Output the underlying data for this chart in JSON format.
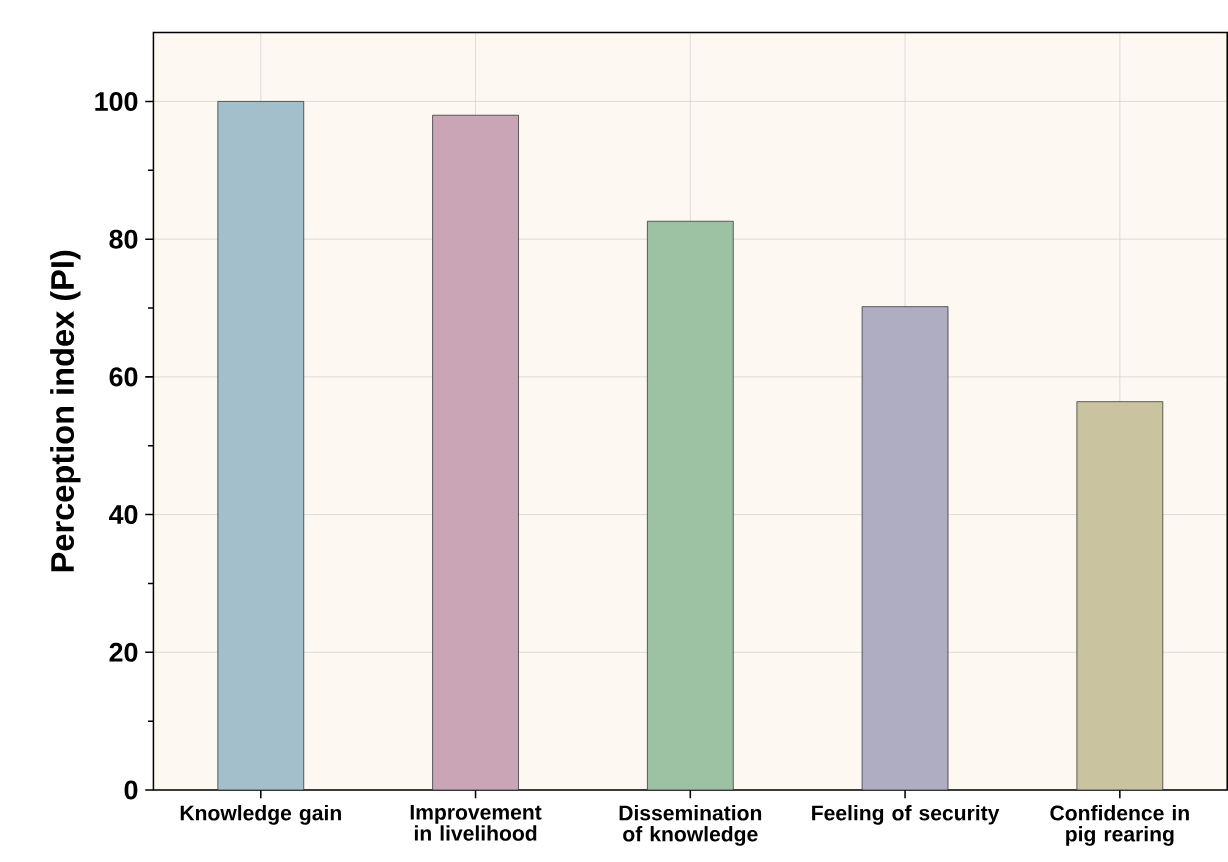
{
  "chart_data": {
    "type": "bar",
    "ylabel": "Perception index (PI)",
    "categories": [
      "Knowledge gain",
      "Improvement in livelihood",
      "Dissemination of knowledge",
      "Feeling of security",
      "Confidence in pig rearing"
    ],
    "values": [
      100,
      98,
      82.6,
      70.2,
      56.4
    ],
    "colors": [
      "#a3bfcc",
      "#c9a5b6",
      "#9cc2a3",
      "#aeadc2",
      "#c9c49f"
    ],
    "ylim": [
      0,
      110
    ],
    "yticks": [
      0,
      20,
      40,
      60,
      80,
      100
    ],
    "grid": true
  }
}
